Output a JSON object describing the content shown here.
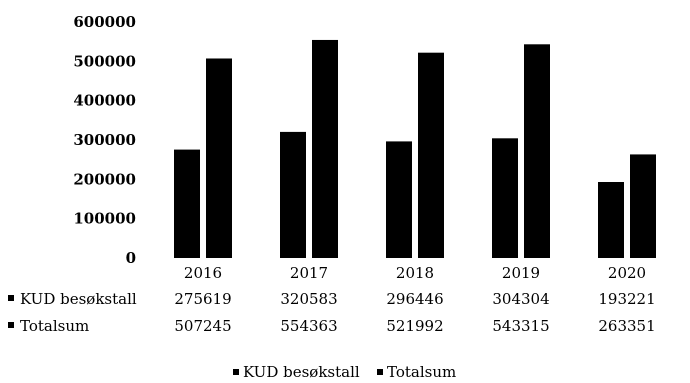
{
  "chart_data": {
    "type": "bar",
    "categories": [
      "2016",
      "2017",
      "2018",
      "2019",
      "2020"
    ],
    "series": [
      {
        "name": "KUD besøkstall",
        "values": [
          275619,
          320583,
          296446,
          304304,
          193221
        ]
      },
      {
        "name": "Totalsum",
        "values": [
          507245,
          554363,
          521992,
          543315,
          263351
        ]
      }
    ],
    "value_labels": [
      [
        "275619",
        "320583",
        "296446",
        "304304",
        "193221"
      ],
      [
        "507245",
        "554363",
        "521992",
        "543315",
        "263351"
      ]
    ],
    "y_ticks": [
      "0",
      "100000",
      "200000",
      "300000",
      "400000",
      "500000",
      "600000"
    ],
    "ylim": [
      0,
      600000
    ],
    "legend_position": "bottom",
    "data_table": true,
    "grid": false,
    "colors": [
      "#000000",
      "#000000"
    ]
  }
}
